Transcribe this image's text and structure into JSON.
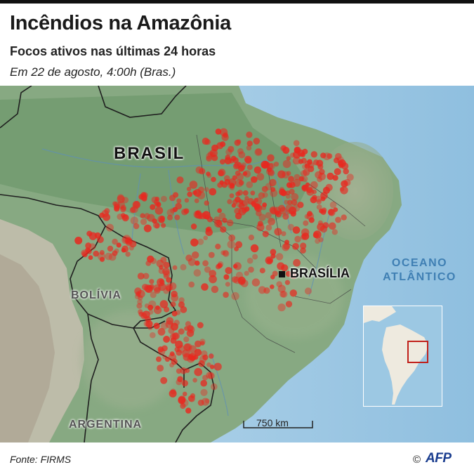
{
  "header": {
    "title": "Incêndios na Amazônia",
    "subtitle": "Focos ativos nas últimas 24 horas",
    "dateline": "Em 22 de agosto, 4:00h (Bras.)"
  },
  "map": {
    "labels": {
      "brasil": "BRASIL",
      "bolivia": "BOLÍVIA",
      "argentina": "ARGENTINA",
      "capital": "BRASÍLIA",
      "ocean_line1": "OCEANO",
      "ocean_line2": "ATLÂNTICO"
    },
    "scale_label": "750 km",
    "colors": {
      "ocean": "#9cc8e3",
      "land": "#7fa57a",
      "andes": "#c9c3b5",
      "fire": "#e8281f",
      "border": "#222222"
    }
  },
  "footer": {
    "source": "Fonte: FIRMS",
    "copyright": "©",
    "logo": "AFP"
  }
}
